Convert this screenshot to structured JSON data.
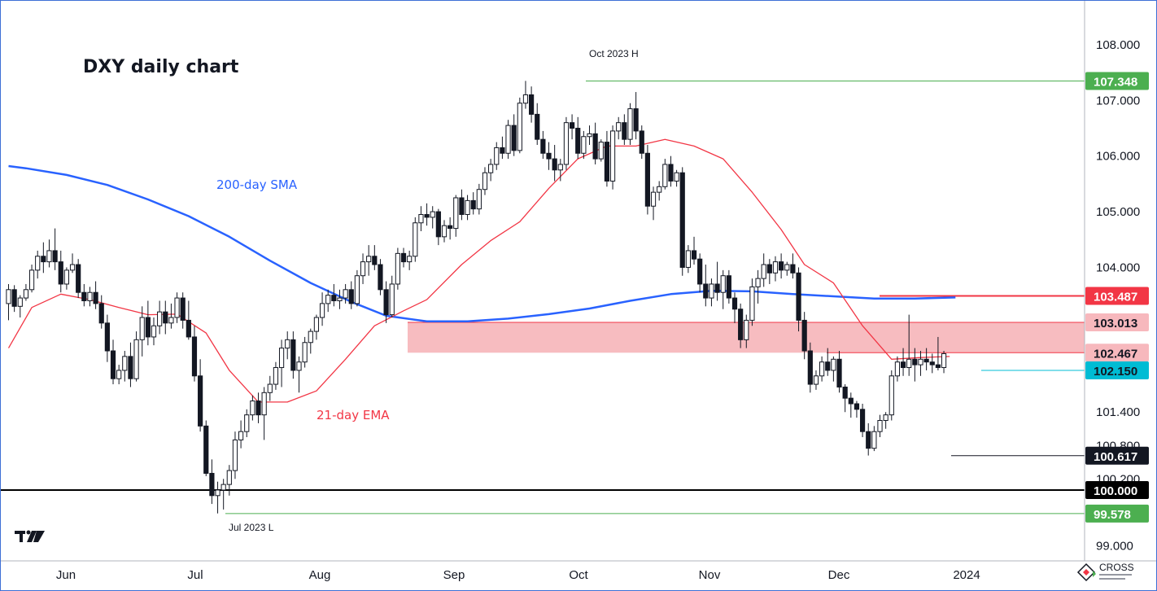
{
  "chart_data": {
    "type": "candlestick",
    "title": "DXY daily chart",
    "ylim": [
      98.85,
      108.35
    ],
    "y_ticks": [
      "108.000",
      "107.000",
      "106.000",
      "105.000",
      "104.000",
      "101.400",
      "100.800",
      "100.200",
      "99.000"
    ],
    "x_ticks": [
      "Jun",
      "Jul",
      "Aug",
      "Sep",
      "Oct",
      "Nov",
      "Dec",
      "2024"
    ],
    "series": [
      {
        "name": "200-day SMA",
        "color": "#2962ff",
        "values": [
          [
            0,
            105.82
          ],
          [
            3,
            105.78
          ],
          [
            10,
            105.66
          ],
          [
            17,
            105.48
          ],
          [
            24,
            105.22
          ],
          [
            31,
            104.92
          ],
          [
            38,
            104.55
          ],
          [
            45,
            104.12
          ],
          [
            52,
            103.72
          ],
          [
            59,
            103.38
          ],
          [
            65,
            103.13
          ],
          [
            72,
            103.03
          ],
          [
            79,
            103.03
          ],
          [
            86,
            103.08
          ],
          [
            93,
            103.16
          ],
          [
            100,
            103.26
          ],
          [
            107,
            103.4
          ],
          [
            114,
            103.52
          ],
          [
            121,
            103.58
          ],
          [
            128,
            103.57
          ],
          [
            135,
            103.52
          ],
          [
            142,
            103.48
          ],
          [
            149,
            103.44
          ],
          [
            156,
            103.44
          ],
          [
            163,
            103.46
          ]
        ]
      },
      {
        "name": "21-day EMA",
        "color": "#f23645",
        "values": [
          [
            0,
            102.55
          ],
          [
            4,
            103.28
          ],
          [
            9,
            103.52
          ],
          [
            14,
            103.42
          ],
          [
            19,
            103.28
          ],
          [
            24,
            103.15
          ],
          [
            29,
            103.16
          ],
          [
            34,
            102.82
          ],
          [
            38,
            102.15
          ],
          [
            43,
            101.58
          ],
          [
            48,
            101.58
          ],
          [
            53,
            101.78
          ],
          [
            58,
            102.35
          ],
          [
            63,
            102.95
          ],
          [
            68,
            103.22
          ],
          [
            72,
            103.42
          ],
          [
            78,
            104.05
          ],
          [
            83,
            104.48
          ],
          [
            88,
            104.82
          ],
          [
            93,
            105.42
          ],
          [
            98,
            105.95
          ],
          [
            103,
            106.18
          ],
          [
            108,
            106.18
          ],
          [
            113,
            106.3
          ],
          [
            118,
            106.18
          ],
          [
            123,
            105.95
          ],
          [
            128,
            105.35
          ],
          [
            133,
            104.68
          ],
          [
            137,
            104.05
          ],
          [
            142,
            103.72
          ],
          [
            147,
            102.95
          ],
          [
            152,
            102.35
          ],
          [
            157,
            102.38
          ],
          [
            162,
            102.4
          ]
        ]
      }
    ],
    "candles": [
      [
        103.35,
        103.7,
        103.05,
        103.6
      ],
      [
        103.6,
        103.68,
        103.2,
        103.3
      ],
      [
        103.3,
        103.5,
        103.1,
        103.45
      ],
      [
        103.45,
        103.7,
        103.4,
        103.6
      ],
      [
        103.6,
        104.05,
        103.55,
        103.95
      ],
      [
        103.95,
        104.3,
        103.8,
        104.2
      ],
      [
        104.2,
        104.45,
        103.9,
        104.1
      ],
      [
        104.1,
        104.5,
        104.0,
        104.3
      ],
      [
        104.3,
        104.7,
        103.95,
        104.1
      ],
      [
        104.1,
        104.3,
        103.55,
        103.7
      ],
      [
        103.7,
        104.0,
        103.6,
        103.95
      ],
      [
        103.95,
        104.25,
        103.9,
        104.05
      ],
      [
        104.05,
        104.15,
        103.45,
        103.55
      ],
      [
        103.55,
        103.7,
        103.3,
        103.4
      ],
      [
        103.4,
        103.65,
        103.3,
        103.55
      ],
      [
        103.55,
        103.75,
        103.25,
        103.35
      ],
      [
        103.35,
        103.5,
        102.9,
        103.0
      ],
      [
        103.0,
        103.15,
        102.3,
        102.5
      ],
      [
        102.5,
        102.7,
        101.9,
        102.0
      ],
      [
        102.0,
        102.25,
        101.9,
        102.15
      ],
      [
        102.15,
        102.5,
        101.95,
        102.4
      ],
      [
        102.4,
        102.65,
        101.85,
        102.0
      ],
      [
        102.0,
        102.85,
        101.95,
        102.7
      ],
      [
        102.7,
        103.3,
        102.4,
        103.1
      ],
      [
        103.1,
        103.4,
        102.6,
        102.75
      ],
      [
        102.75,
        103.1,
        102.6,
        102.95
      ],
      [
        102.95,
        103.4,
        102.8,
        103.2
      ],
      [
        103.2,
        103.4,
        102.8,
        103.0
      ],
      [
        103.0,
        103.35,
        102.9,
        103.1
      ],
      [
        103.1,
        103.55,
        103.0,
        103.45
      ],
      [
        103.45,
        103.55,
        102.9,
        103.05
      ],
      [
        103.05,
        103.4,
        102.7,
        102.75
      ],
      [
        102.75,
        102.95,
        101.95,
        102.05
      ],
      [
        102.05,
        102.35,
        101.05,
        101.15
      ],
      [
        101.15,
        101.25,
        100.25,
        100.3
      ],
      [
        100.3,
        100.55,
        99.75,
        99.9
      ],
      [
        99.9,
        100.15,
        99.58,
        100.0
      ],
      [
        100.0,
        100.2,
        99.65,
        100.1
      ],
      [
        100.1,
        100.45,
        99.9,
        100.35
      ],
      [
        100.35,
        101.05,
        100.2,
        100.9
      ],
      [
        100.9,
        101.25,
        100.75,
        101.05
      ],
      [
        101.05,
        101.45,
        100.95,
        101.35
      ],
      [
        101.35,
        101.7,
        101.25,
        101.6
      ],
      [
        101.6,
        101.75,
        101.2,
        101.35
      ],
      [
        101.35,
        101.85,
        100.9,
        101.75
      ],
      [
        101.75,
        102.05,
        101.6,
        101.9
      ],
      [
        101.9,
        102.3,
        101.8,
        102.2
      ],
      [
        102.2,
        102.7,
        101.85,
        102.55
      ],
      [
        102.55,
        102.85,
        102.35,
        102.7
      ],
      [
        102.7,
        102.85,
        102.0,
        102.15
      ],
      [
        102.15,
        102.4,
        101.75,
        102.3
      ],
      [
        102.3,
        102.75,
        102.2,
        102.65
      ],
      [
        102.65,
        102.9,
        102.45,
        102.85
      ],
      [
        102.85,
        103.15,
        102.7,
        103.1
      ],
      [
        103.1,
        103.55,
        102.95,
        103.35
      ],
      [
        103.35,
        103.6,
        103.2,
        103.5
      ],
      [
        103.5,
        103.7,
        103.3,
        103.4
      ],
      [
        103.4,
        103.6,
        103.25,
        103.45
      ],
      [
        103.45,
        103.7,
        103.35,
        103.6
      ],
      [
        103.6,
        103.75,
        103.25,
        103.35
      ],
      [
        103.35,
        103.95,
        103.3,
        103.85
      ],
      [
        103.85,
        104.25,
        103.7,
        104.1
      ],
      [
        104.1,
        104.4,
        103.85,
        104.2
      ],
      [
        104.2,
        104.4,
        103.95,
        104.05
      ],
      [
        104.05,
        104.15,
        103.5,
        103.6
      ],
      [
        103.6,
        103.75,
        103.0,
        103.15
      ],
      [
        103.15,
        103.85,
        103.1,
        103.7
      ],
      [
        103.7,
        104.35,
        103.6,
        104.25
      ],
      [
        104.25,
        104.35,
        104.0,
        104.1
      ],
      [
        104.1,
        104.3,
        103.95,
        104.2
      ],
      [
        104.2,
        104.9,
        104.1,
        104.8
      ],
      [
        104.8,
        105.1,
        104.65,
        104.95
      ],
      [
        104.95,
        105.15,
        104.75,
        104.9
      ],
      [
        104.9,
        105.1,
        104.7,
        105.0
      ],
      [
        105.0,
        105.05,
        104.4,
        104.55
      ],
      [
        104.55,
        104.85,
        104.45,
        104.75
      ],
      [
        104.75,
        104.9,
        104.5,
        104.7
      ],
      [
        104.7,
        105.3,
        104.55,
        105.25
      ],
      [
        105.25,
        105.4,
        104.85,
        104.95
      ],
      [
        104.95,
        105.3,
        104.85,
        105.2
      ],
      [
        105.2,
        105.35,
        104.95,
        105.05
      ],
      [
        105.05,
        105.5,
        104.95,
        105.4
      ],
      [
        105.4,
        105.8,
        105.3,
        105.7
      ],
      [
        105.7,
        105.95,
        105.55,
        105.85
      ],
      [
        105.85,
        106.25,
        105.75,
        106.15
      ],
      [
        106.15,
        106.35,
        105.95,
        106.05
      ],
      [
        106.05,
        106.65,
        105.95,
        106.55
      ],
      [
        106.55,
        106.75,
        106.0,
        106.1
      ],
      [
        106.1,
        107.05,
        106.05,
        106.95
      ],
      [
        106.95,
        107.35,
        106.85,
        107.1
      ],
      [
        107.1,
        107.25,
        106.6,
        106.75
      ],
      [
        106.75,
        106.95,
        106.2,
        106.3
      ],
      [
        106.3,
        106.45,
        105.95,
        106.05
      ],
      [
        106.05,
        106.25,
        105.75,
        105.95
      ],
      [
        105.95,
        106.2,
        105.55,
        105.75
      ],
      [
        105.75,
        105.95,
        105.55,
        105.85
      ],
      [
        105.85,
        106.7,
        105.75,
        106.6
      ],
      [
        106.6,
        106.75,
        106.3,
        106.5
      ],
      [
        106.5,
        106.7,
        105.95,
        106.05
      ],
      [
        106.05,
        106.45,
        105.95,
        106.35
      ],
      [
        106.35,
        106.55,
        106.2,
        106.4
      ],
      [
        106.4,
        106.6,
        105.85,
        105.95
      ],
      [
        105.95,
        106.3,
        105.9,
        106.25
      ],
      [
        106.25,
        106.45,
        105.45,
        105.55
      ],
      [
        105.55,
        106.55,
        105.4,
        106.45
      ],
      [
        106.45,
        106.7,
        106.3,
        106.6
      ],
      [
        106.6,
        106.75,
        106.2,
        106.3
      ],
      [
        106.3,
        106.95,
        106.2,
        106.85
      ],
      [
        106.85,
        107.15,
        106.3,
        106.45
      ],
      [
        106.45,
        106.55,
        105.95,
        106.05
      ],
      [
        106.05,
        106.2,
        104.95,
        105.1
      ],
      [
        105.1,
        105.45,
        104.85,
        105.35
      ],
      [
        105.35,
        105.55,
        105.2,
        105.45
      ],
      [
        105.45,
        105.95,
        105.4,
        105.85
      ],
      [
        105.85,
        106.0,
        105.45,
        105.55
      ],
      [
        105.55,
        105.75,
        105.45,
        105.7
      ],
      [
        105.7,
        105.8,
        103.85,
        104.0
      ],
      [
        104.0,
        104.4,
        103.9,
        104.3
      ],
      [
        104.3,
        104.55,
        104.05,
        104.15
      ],
      [
        104.15,
        104.25,
        103.55,
        103.7
      ],
      [
        103.7,
        104.05,
        103.3,
        103.45
      ],
      [
        103.45,
        103.8,
        103.3,
        103.7
      ],
      [
        103.7,
        104.1,
        103.4,
        103.55
      ],
      [
        103.55,
        103.95,
        103.25,
        103.85
      ],
      [
        103.85,
        103.95,
        103.35,
        103.45
      ],
      [
        103.45,
        103.55,
        103.0,
        103.25
      ],
      [
        103.25,
        103.35,
        102.55,
        102.7
      ],
      [
        102.7,
        103.15,
        102.55,
        103.05
      ],
      [
        103.05,
        103.8,
        102.95,
        103.65
      ],
      [
        103.65,
        103.95,
        103.35,
        103.8
      ],
      [
        103.8,
        104.25,
        103.65,
        104.05
      ],
      [
        104.05,
        104.15,
        103.7,
        103.9
      ],
      [
        103.9,
        104.2,
        103.75,
        104.1
      ],
      [
        104.1,
        104.25,
        103.8,
        103.95
      ],
      [
        103.95,
        104.1,
        103.85,
        104.05
      ],
      [
        104.05,
        104.25,
        103.8,
        103.9
      ],
      [
        103.9,
        104.0,
        102.85,
        103.05
      ],
      [
        103.05,
        103.2,
        102.35,
        102.5
      ],
      [
        102.5,
        102.65,
        101.75,
        101.9
      ],
      [
        101.9,
        102.15,
        101.8,
        102.05
      ],
      [
        102.05,
        102.4,
        101.95,
        102.3
      ],
      [
        102.3,
        102.55,
        102.05,
        102.15
      ],
      [
        102.15,
        102.4,
        101.95,
        102.35
      ],
      [
        102.35,
        102.5,
        101.75,
        101.85
      ],
      [
        101.85,
        101.9,
        101.4,
        101.65
      ],
      [
        101.65,
        101.75,
        101.3,
        101.55
      ],
      [
        101.55,
        101.6,
        101.3,
        101.45
      ],
      [
        101.45,
        101.55,
        100.95,
        101.05
      ],
      [
        101.05,
        101.2,
        100.62,
        100.75
      ],
      [
        100.75,
        101.15,
        100.7,
        101.05
      ],
      [
        101.05,
        101.35,
        100.95,
        101.25
      ],
      [
        101.25,
        101.4,
        101.1,
        101.35
      ],
      [
        101.35,
        102.15,
        101.25,
        102.05
      ],
      [
        102.05,
        102.4,
        101.95,
        102.3
      ],
      [
        102.3,
        102.55,
        102.05,
        102.2
      ],
      [
        102.2,
        103.15,
        102.05,
        102.35
      ],
      [
        102.35,
        102.55,
        101.95,
        102.25
      ],
      [
        102.25,
        102.5,
        102.05,
        102.35
      ],
      [
        102.35,
        102.55,
        102.15,
        102.3
      ],
      [
        102.3,
        102.45,
        102.1,
        102.25
      ],
      [
        102.25,
        102.75,
        102.15,
        102.2
      ],
      [
        102.2,
        102.5,
        102.1,
        102.45
      ]
    ],
    "levels": [
      {
        "value": 107.348,
        "label": "107.348",
        "color": "#4caf50",
        "text_color": "#ffffff"
      },
      {
        "value": 103.487,
        "label": "103.487",
        "color": "#f23645",
        "text_color": "#ffffff"
      },
      {
        "value": 103.013,
        "label": "103.013",
        "color": "#f7b8bd",
        "text_color": "#131722"
      },
      {
        "value": 102.467,
        "label": "102.467",
        "color": "#f7b8bd",
        "text_color": "#131722"
      },
      {
        "value": 102.15,
        "label": "102.150",
        "color": "#00bcd4",
        "text_color": "#131722"
      },
      {
        "value": 100.617,
        "label": "100.617",
        "color": "#131722",
        "text_color": "#ffffff"
      },
      {
        "value": 100.0,
        "label": "100.000",
        "color": "#000000",
        "text_color": "#ffffff"
      },
      {
        "value": 99.578,
        "label": "99.578",
        "color": "#4caf50",
        "text_color": "#ffffff"
      }
    ],
    "zone": {
      "low": 102.467,
      "high": 103.013,
      "color": "#f7b8bd"
    },
    "annotations": [
      {
        "text": "Oct 2023 H",
        "value": 107.348
      },
      {
        "text": "Jul 2023 L",
        "value": 99.578
      }
    ],
    "ma_labels": {
      "sma": "200-day SMA",
      "ema": "21-day EMA"
    },
    "logo": "TV",
    "watermark": "CROSS"
  }
}
